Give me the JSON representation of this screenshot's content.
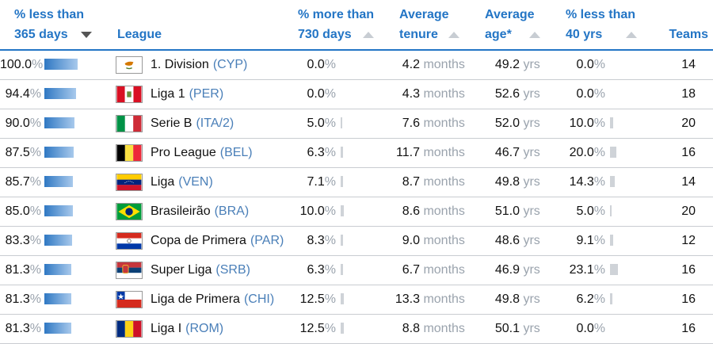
{
  "headers": {
    "pct365": [
      "% less than",
      "365 days"
    ],
    "league": "League",
    "pct730": [
      "% more than",
      "730 days"
    ],
    "tenure": [
      "Average",
      "tenure"
    ],
    "age": [
      "Average",
      "age*"
    ],
    "pct40": [
      "% less than",
      "40 yrs"
    ],
    "teams": "Teams"
  },
  "units": {
    "pct": "%",
    "months": "months",
    "yrs": "yrs"
  },
  "rows": [
    {
      "p365": "100.0",
      "p365_level": 1.0,
      "flag": "cyp",
      "league": "1. Division",
      "code": "(CYP)",
      "p730": "0.0",
      "p730_level": 0,
      "tenure": "4.2",
      "age": "49.2",
      "p40": "0.0",
      "p40_level": 0,
      "teams": "14"
    },
    {
      "p365": "94.4",
      "p365_level": 0.944,
      "flag": "per",
      "league": "Liga 1",
      "code": "(PER)",
      "p730": "0.0",
      "p730_level": 0,
      "tenure": "4.3",
      "age": "52.6",
      "p40": "0.0",
      "p40_level": 0,
      "teams": "18"
    },
    {
      "p365": "90.0",
      "p365_level": 0.9,
      "flag": "ita",
      "league": "Serie B",
      "code": "(ITA/2)",
      "p730": "5.0",
      "p730_level": 0.05,
      "tenure": "7.6",
      "age": "52.0",
      "p40": "10.0",
      "p40_level": 0.1,
      "teams": "20"
    },
    {
      "p365": "87.5",
      "p365_level": 0.875,
      "flag": "bel",
      "league": "Pro League",
      "code": "(BEL)",
      "p730": "6.3",
      "p730_level": 0.063,
      "tenure": "11.7",
      "age": "46.7",
      "p40": "20.0",
      "p40_level": 0.2,
      "teams": "16"
    },
    {
      "p365": "85.7",
      "p365_level": 0.857,
      "flag": "ven",
      "league": "Liga",
      "code": "(VEN)",
      "p730": "7.1",
      "p730_level": 0.071,
      "tenure": "8.7",
      "age": "49.8",
      "p40": "14.3",
      "p40_level": 0.143,
      "teams": "14"
    },
    {
      "p365": "85.0",
      "p365_level": 0.85,
      "flag": "bra",
      "league": "Brasileirão",
      "code": "(BRA)",
      "p730": "10.0",
      "p730_level": 0.1,
      "tenure": "8.6",
      "age": "51.0",
      "p40": "5.0",
      "p40_level": 0.05,
      "teams": "20"
    },
    {
      "p365": "83.3",
      "p365_level": 0.833,
      "flag": "par",
      "league": "Copa de Primera",
      "code": "(PAR)",
      "p730": "8.3",
      "p730_level": 0.083,
      "tenure": "9.0",
      "age": "48.6",
      "p40": "9.1",
      "p40_level": 0.091,
      "teams": "12"
    },
    {
      "p365": "81.3",
      "p365_level": 0.813,
      "flag": "srb",
      "league": "Super Liga",
      "code": "(SRB)",
      "p730": "6.3",
      "p730_level": 0.063,
      "tenure": "6.7",
      "age": "46.9",
      "p40": "23.1",
      "p40_level": 0.231,
      "teams": "16"
    },
    {
      "p365": "81.3",
      "p365_level": 0.813,
      "flag": "chi",
      "league": "Liga de Primera",
      "code": "(CHI)",
      "p730": "12.5",
      "p730_level": 0.125,
      "tenure": "13.3",
      "age": "49.8",
      "p40": "6.2",
      "p40_level": 0.062,
      "teams": "16"
    },
    {
      "p365": "81.3",
      "p365_level": 0.813,
      "flag": "rom",
      "league": "Liga I",
      "code": "(ROM)",
      "p730": "12.5",
      "p730_level": 0.125,
      "tenure": "8.8",
      "age": "50.1",
      "p40": "0.0",
      "p40_level": 0,
      "teams": "16"
    }
  ],
  "colors": {
    "header_blue": "#2375c5",
    "code_blue": "#4a7fb8",
    "unit_gray": "#9aa3ad"
  }
}
